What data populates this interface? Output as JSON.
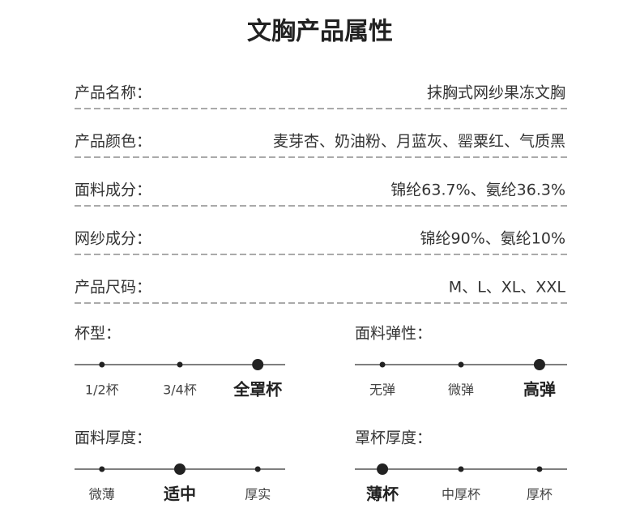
{
  "title": "文胸产品属性",
  "attributes": [
    {
      "label": "产品名称：",
      "value": "抹胸式网纱果冻文胸"
    },
    {
      "label": "产品颜色：",
      "value": "麦芽杏、奶油粉、月蓝灰、罂粟红、气质黑"
    },
    {
      "label": "面料成分：",
      "value": "锦纶63.7%、氨纶36.3%"
    },
    {
      "label": "网纱成分：",
      "value": "锦纶90%、氨纶10%"
    },
    {
      "label": "产品尺码：",
      "value": "M、L、XL、XXL"
    }
  ],
  "scales": [
    {
      "label": "杯型：",
      "options": [
        "1/2杯",
        "3/4杯",
        "全罩杯"
      ],
      "selected": 2
    },
    {
      "label": "面料弹性：",
      "options": [
        "无弹",
        "微弹",
        "高弹"
      ],
      "selected": 2
    },
    {
      "label": "面料厚度：",
      "options": [
        "微薄",
        "适中",
        "厚实"
      ],
      "selected": 1
    },
    {
      "label": "罩杯厚度：",
      "options": [
        "薄杯",
        "中厚杯",
        "厚杯"
      ],
      "selected": 0
    }
  ]
}
